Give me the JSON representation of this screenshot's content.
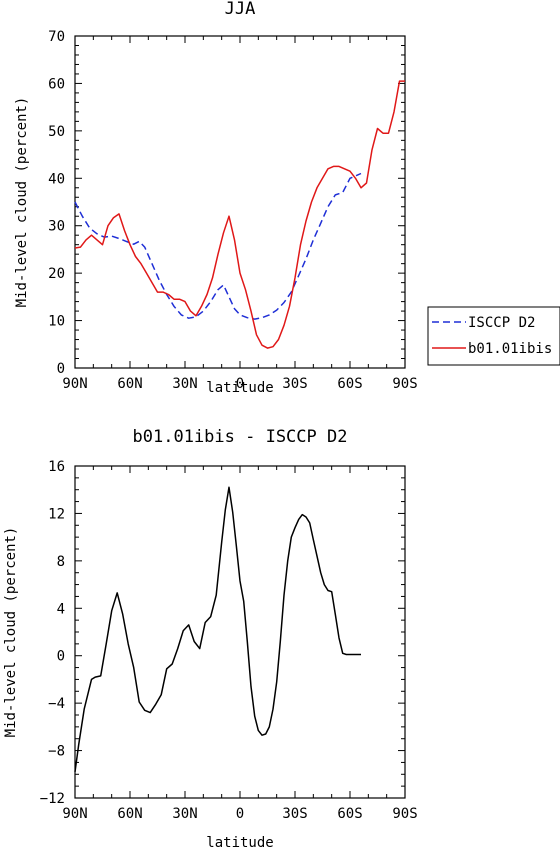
{
  "chart_data": [
    {
      "type": "line",
      "title": "JJA",
      "xlabel": "latitude",
      "ylabel": "Mid-level cloud (percent)",
      "xlim": [
        90,
        -90
      ],
      "ylim": [
        0,
        70
      ],
      "x_ticks": [
        90,
        60,
        30,
        0,
        -30,
        -60,
        -90
      ],
      "x_tick_labels": [
        "90N",
        "60N",
        "30N",
        "0",
        "30S",
        "60S",
        "90S"
      ],
      "y_ticks": [
        0,
        10,
        20,
        30,
        40,
        50,
        60,
        70
      ],
      "y_tick_labels": [
        "0",
        "10",
        "20",
        "30",
        "40",
        "50",
        "60",
        "70"
      ],
      "legend": {
        "placement": "outside-right"
      },
      "series": [
        {
          "name": "ISCCP D2",
          "color": "#1f2fd6",
          "dash": "dashed",
          "x": [
            90,
            86,
            82,
            78,
            74,
            70,
            66,
            62,
            58,
            55,
            52,
            48,
            44,
            40,
            36,
            32,
            28,
            24,
            20,
            16,
            12,
            9,
            6,
            3,
            0,
            -4,
            -8,
            -12,
            -16,
            -20,
            -24,
            -28,
            -32,
            -36,
            -40,
            -44,
            -48,
            -52,
            -56,
            -60,
            -63,
            -66
          ],
          "values": [
            35,
            32,
            29.5,
            28.3,
            27.6,
            27.8,
            27.3,
            26.7,
            26.1,
            26.7,
            25.5,
            22,
            18.5,
            15.5,
            13,
            11.2,
            10.5,
            10.8,
            12,
            14,
            16.5,
            17.5,
            15,
            12.5,
            11.2,
            10.6,
            10.3,
            10.6,
            11.2,
            12.2,
            13.8,
            16,
            19.5,
            23,
            27,
            30.5,
            34,
            36.5,
            37,
            40,
            40.5,
            41
          ]
        },
        {
          "name": "b01.01ibis",
          "color": "#e01818",
          "dash": "solid",
          "x": [
            90,
            87,
            84,
            81,
            78,
            75,
            72,
            69,
            66,
            63,
            60,
            57,
            54,
            51,
            48,
            45,
            42,
            39,
            36,
            33,
            30,
            27,
            24,
            21,
            18,
            15,
            12,
            9,
            6,
            3,
            0,
            -3,
            -6,
            -9,
            -12,
            -15,
            -18,
            -21,
            -24,
            -27,
            -30,
            -33,
            -36,
            -39,
            -42,
            -45,
            -48,
            -51,
            -54,
            -57,
            -60,
            -63,
            -66,
            -69,
            -72,
            -75,
            -78,
            -81,
            -84,
            -87,
            -90
          ],
          "values": [
            25.3,
            25.5,
            27,
            28,
            27,
            26,
            30,
            31.7,
            32.5,
            29,
            26,
            23.5,
            22,
            20,
            18,
            16,
            16,
            15.5,
            14.5,
            14.5,
            14,
            12,
            11,
            13,
            15.5,
            19,
            24,
            28.5,
            32,
            27,
            20,
            16.5,
            12,
            7,
            4.8,
            4.2,
            4.5,
            6,
            9,
            13,
            19,
            26,
            31,
            35,
            38,
            40,
            42,
            42.5,
            42.5,
            42,
            41.5,
            40,
            38,
            39,
            46,
            50.5,
            49.5,
            49.5,
            54,
            60.5,
            60.5
          ]
        }
      ]
    },
    {
      "type": "line",
      "title": "b01.01ibis - ISCCP D2",
      "xlabel": "latitude",
      "ylabel": "Mid-level cloud (percent)",
      "xlim": [
        90,
        -90
      ],
      "ylim": [
        -12,
        16
      ],
      "x_ticks": [
        90,
        60,
        30,
        0,
        -30,
        -60,
        -90
      ],
      "x_tick_labels": [
        "90N",
        "60N",
        "30N",
        "0",
        "30S",
        "60S",
        "90S"
      ],
      "y_ticks": [
        -12,
        -8,
        -4,
        0,
        4,
        8,
        12,
        16
      ],
      "y_tick_labels": [
        "−12",
        "−8",
        "−4",
        "0",
        "4",
        "8",
        "12",
        "16"
      ],
      "series": [
        {
          "color": "#000000",
          "dash": "solid",
          "x": [
            90,
            88,
            85,
            81,
            79,
            76,
            73,
            70,
            67,
            64,
            61,
            58,
            55,
            52,
            49,
            46,
            43,
            40,
            37,
            34,
            31,
            28,
            25,
            22,
            19,
            16,
            13,
            10,
            8,
            6,
            4,
            2,
            0,
            -2,
            -4,
            -6,
            -8,
            -10,
            -12,
            -14,
            -16,
            -18,
            -20,
            -22,
            -24,
            -26,
            -28,
            -30,
            -32,
            -34,
            -36,
            -38,
            -40,
            -42,
            -44,
            -46,
            -48,
            -50,
            -52,
            -54,
            -56,
            -58,
            -60,
            -62,
            -64,
            -66
          ],
          "values": [
            -9.8,
            -7.5,
            -4.5,
            -2,
            -1.8,
            -1.7,
            1,
            3.8,
            5.3,
            3.5,
            1,
            -1,
            -3.9,
            -4.6,
            -4.8,
            -4.1,
            -3.3,
            -1.1,
            -0.7,
            0.6,
            2.1,
            2.6,
            1.2,
            0.6,
            2.8,
            3.3,
            5.1,
            9.6,
            12.3,
            14.2,
            12.1,
            9.3,
            6.3,
            4.6,
            1.2,
            -2.6,
            -5.1,
            -6.3,
            -6.7,
            -6.6,
            -6,
            -4.5,
            -2.2,
            1.2,
            5.1,
            8,
            10,
            10.8,
            11.5,
            11.9,
            11.7,
            11.2,
            9.8,
            8.4,
            7,
            6,
            5.5,
            5.4,
            3.5,
            1.5,
            0.2,
            0.1,
            0.1,
            0.1,
            0.1,
            0.1
          ]
        }
      ]
    }
  ]
}
